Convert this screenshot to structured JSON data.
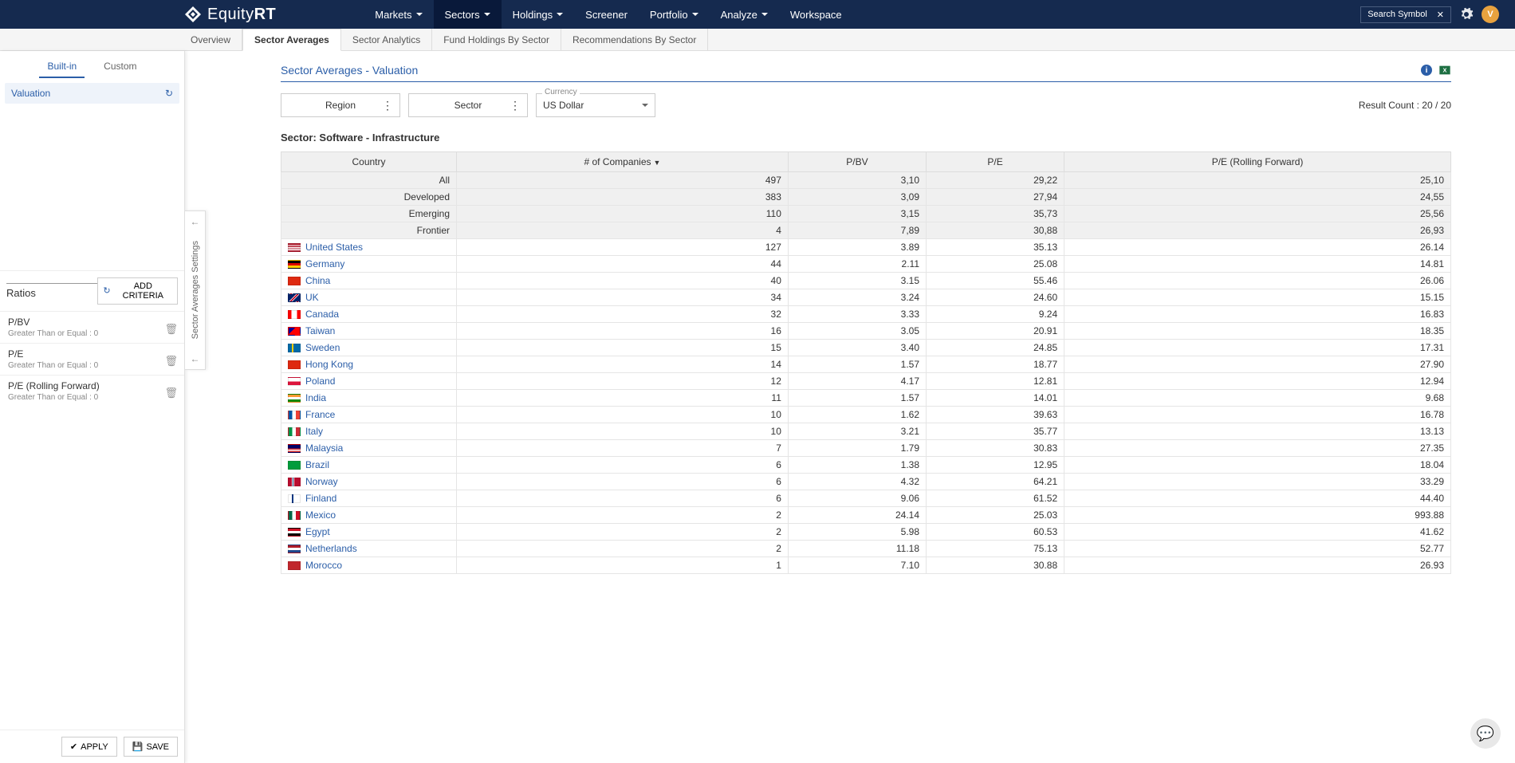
{
  "brand": {
    "name_a": "Equity",
    "name_b": "RT"
  },
  "nav": {
    "items": [
      {
        "label": "Markets",
        "dd": true
      },
      {
        "label": "Sectors",
        "dd": true,
        "active": true
      },
      {
        "label": "Holdings",
        "dd": true
      },
      {
        "label": "Screener",
        "dd": false
      },
      {
        "label": "Portfolio",
        "dd": true
      },
      {
        "label": "Analyze",
        "dd": true
      },
      {
        "label": "Workspace",
        "dd": false
      }
    ],
    "search_label": "Search Symbol",
    "avatar_letter": "V"
  },
  "subnav": {
    "items": [
      {
        "label": "Overview"
      },
      {
        "label": "Sector Averages",
        "active": true
      },
      {
        "label": "Sector Analytics"
      },
      {
        "label": "Fund Holdings By Sector"
      },
      {
        "label": "Recommendations By Sector"
      }
    ]
  },
  "sidebar": {
    "tabs": [
      {
        "label": "Built-in",
        "active": true
      },
      {
        "label": "Custom"
      }
    ],
    "valuation_label": "Valuation",
    "flyout_label": "Sector Averages Settings",
    "ratios_title": "Ratios",
    "add_criteria_label": "ADD CRITERIA",
    "criteria": [
      {
        "name": "P/BV",
        "cond": "Greater Than or Equal : 0"
      },
      {
        "name": "P/E",
        "cond": "Greater Than or Equal : 0"
      },
      {
        "name": "P/E (Rolling Forward)",
        "cond": "Greater Than or Equal : 0"
      }
    ],
    "apply_label": "APPLY",
    "save_label": "SAVE"
  },
  "page": {
    "title": "Sector Averages - Valuation",
    "filters": {
      "region_label": "Region",
      "sector_label": "Sector",
      "currency_caption": "Currency",
      "currency_value": "US Dollar"
    },
    "result_count_label": "Result Count : 20 / 20",
    "sector_heading": "Sector: Software - Infrastructure"
  },
  "table": {
    "columns": [
      "Country",
      "# of Companies",
      "P/BV",
      "P/E",
      "P/E (Rolling Forward)"
    ],
    "sort_col": 1,
    "agg_rows": [
      {
        "country": "All",
        "companies": "497",
        "pbv": "3,10",
        "pe": "29,22",
        "pef": "25,10"
      },
      {
        "country": "Developed",
        "companies": "383",
        "pbv": "3,09",
        "pe": "27,94",
        "pef": "24,55"
      },
      {
        "country": "Emerging",
        "companies": "110",
        "pbv": "3,15",
        "pe": "35,73",
        "pef": "25,56"
      },
      {
        "country": "Frontier",
        "companies": "4",
        "pbv": "7,89",
        "pe": "30,88",
        "pef": "26,93"
      }
    ],
    "rows": [
      {
        "country": "United States",
        "flag": "us",
        "companies": "127",
        "pbv": "3.89",
        "pe": "35.13",
        "pef": "26.14"
      },
      {
        "country": "Germany",
        "flag": "de",
        "companies": "44",
        "pbv": "2.11",
        "pe": "25.08",
        "pef": "14.81"
      },
      {
        "country": "China",
        "flag": "cn",
        "companies": "40",
        "pbv": "3.15",
        "pe": "55.46",
        "pef": "26.06"
      },
      {
        "country": "UK",
        "flag": "gb",
        "companies": "34",
        "pbv": "3.24",
        "pe": "24.60",
        "pef": "15.15"
      },
      {
        "country": "Canada",
        "flag": "ca",
        "companies": "32",
        "pbv": "3.33",
        "pe": "9.24",
        "pef": "16.83"
      },
      {
        "country": "Taiwan",
        "flag": "tw",
        "companies": "16",
        "pbv": "3.05",
        "pe": "20.91",
        "pef": "18.35"
      },
      {
        "country": "Sweden",
        "flag": "se",
        "companies": "15",
        "pbv": "3.40",
        "pe": "24.85",
        "pef": "17.31"
      },
      {
        "country": "Hong Kong",
        "flag": "hk",
        "companies": "14",
        "pbv": "1.57",
        "pe": "18.77",
        "pef": "27.90"
      },
      {
        "country": "Poland",
        "flag": "pl",
        "companies": "12",
        "pbv": "4.17",
        "pe": "12.81",
        "pef": "12.94"
      },
      {
        "country": "India",
        "flag": "in",
        "companies": "11",
        "pbv": "1.57",
        "pe": "14.01",
        "pef": "9.68"
      },
      {
        "country": "France",
        "flag": "fr",
        "companies": "10",
        "pbv": "1.62",
        "pe": "39.63",
        "pef": "16.78"
      },
      {
        "country": "Italy",
        "flag": "it",
        "companies": "10",
        "pbv": "3.21",
        "pe": "35.77",
        "pef": "13.13"
      },
      {
        "country": "Malaysia",
        "flag": "my",
        "companies": "7",
        "pbv": "1.79",
        "pe": "30.83",
        "pef": "27.35"
      },
      {
        "country": "Brazil",
        "flag": "br",
        "companies": "6",
        "pbv": "1.38",
        "pe": "12.95",
        "pef": "18.04"
      },
      {
        "country": "Norway",
        "flag": "no",
        "companies": "6",
        "pbv": "4.32",
        "pe": "64.21",
        "pef": "33.29"
      },
      {
        "country": "Finland",
        "flag": "fi",
        "companies": "6",
        "pbv": "9.06",
        "pe": "61.52",
        "pef": "44.40"
      },
      {
        "country": "Mexico",
        "flag": "mx",
        "companies": "2",
        "pbv": "24.14",
        "pe": "25.03",
        "pef": "993.88"
      },
      {
        "country": "Egypt",
        "flag": "eg",
        "companies": "2",
        "pbv": "5.98",
        "pe": "60.53",
        "pef": "41.62"
      },
      {
        "country": "Netherlands",
        "flag": "nl",
        "companies": "2",
        "pbv": "11.18",
        "pe": "75.13",
        "pef": "52.77"
      },
      {
        "country": "Morocco",
        "flag": "ma",
        "companies": "1",
        "pbv": "7.10",
        "pe": "30.88",
        "pef": "26.93"
      }
    ]
  },
  "flags": {
    "us": "linear-gradient(180deg,#b22234 0 15%,#fff 15% 30%,#b22234 30% 45%,#fff 45% 60%,#b22234 60% 75%,#fff 75% 90%,#b22234 90% 100%)",
    "de": "linear-gradient(180deg,#000 0 33%,#dd0000 33% 66%,#ffce00 66% 100%)",
    "cn": "#de2910",
    "gb": "linear-gradient(135deg,#012169 40%,#fff 40% 45%,#c8102e 45% 55%,#fff 55% 60%,#012169 60%)",
    "ca": "linear-gradient(90deg,#ff0000 0 25%,#fff 25% 75%,#ff0000 75% 100%)",
    "tw": "linear-gradient(135deg,#000095 0 35%,#fe0000 35% 100%)",
    "se": "linear-gradient(90deg,#006aa7 0 30%,#fecc00 30% 42%,#006aa7 42% 100%)",
    "hk": "#de2910",
    "pl": "linear-gradient(180deg,#fff 0 50%,#dc143c 50% 100%)",
    "in": "linear-gradient(180deg,#ff9933 0 33%,#fff 33% 66%,#138808 66% 100%)",
    "fr": "linear-gradient(90deg,#0055a4 0 33%,#fff 33% 66%,#ef4135 66% 100%)",
    "it": "linear-gradient(90deg,#009246 0 33%,#fff 33% 66%,#ce2b37 66% 100%)",
    "my": "linear-gradient(180deg,#010066 0 50%,#cc0001 50% 60%,#fff 60% 70%,#cc0001 70% 80%,#fff 80% 90%,#cc0001 90% 100%)",
    "br": "#009c3b",
    "no": "linear-gradient(90deg,#ba0c2f 0 28%,#fff 28% 34%,#00205b 34% 44%,#fff 44% 50%,#ba0c2f 50% 100%)",
    "fi": "linear-gradient(90deg,#fff 0 28%,#003580 28% 44%,#fff 44% 100%)",
    "mx": "linear-gradient(90deg,#006847 0 33%,#fff 33% 66%,#ce1126 66% 100%)",
    "eg": "linear-gradient(180deg,#ce1126 0 33%,#fff 33% 66%,#000 66% 100%)",
    "nl": "linear-gradient(180deg,#ae1c28 0 33%,#fff 33% 66%,#21468b 66% 100%)",
    "ma": "#c1272d"
  }
}
